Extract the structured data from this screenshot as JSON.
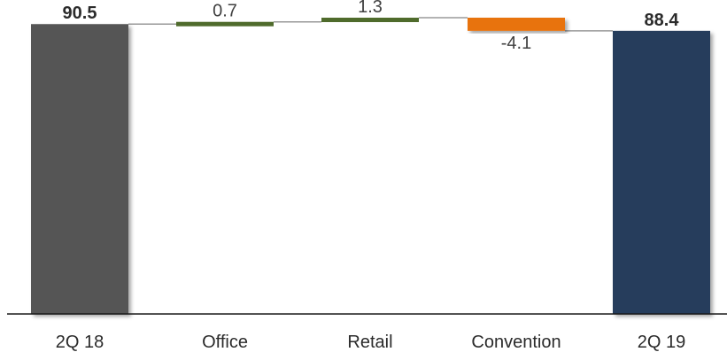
{
  "chart_data": {
    "type": "bar",
    "subtype": "waterfall",
    "categories": [
      "2Q 18",
      "Office",
      "Retail",
      "Convention",
      "2Q 19"
    ],
    "values": [
      90.5,
      0.7,
      1.3,
      -4.1,
      88.4
    ],
    "data_labels": [
      "90.5",
      "0.7",
      "1.3",
      "-4.1",
      "88.4"
    ],
    "bar_kinds": [
      "total",
      "delta",
      "delta",
      "delta",
      "total"
    ],
    "colors": {
      "start_total": "#555555",
      "end_total": "#253c5c",
      "increase": "#4f6b2c",
      "decrease": "#e8730f",
      "connector": "#9a9a9a",
      "axis": "#1a1a1a"
    },
    "title": "",
    "xlabel": "",
    "ylabel": "",
    "ylim": [
      0,
      92.5
    ],
    "grid": false,
    "legend": "none"
  }
}
